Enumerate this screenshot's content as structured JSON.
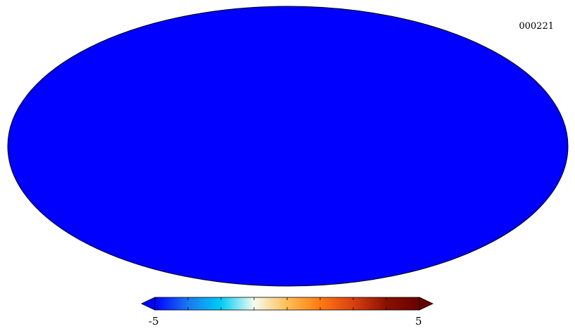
{
  "map_id": "000221",
  "chart_data": {
    "type": "heatmap",
    "projection": "mollweide",
    "title": "",
    "colorbar": {
      "min": -5,
      "max": 5,
      "min_label": "-5",
      "max_label": "5",
      "extend": "both",
      "ticks": [
        -5,
        -3.75,
        -2.5,
        -1.25,
        0,
        1.25,
        2.5,
        3.75,
        5
      ],
      "colormap": [
        "#0000ff",
        "#1a78f0",
        "#00ccf5",
        "#f5fbf0",
        "#ffbe55",
        "#ff7a10",
        "#d94010",
        "#8a1000",
        "#6a0000"
      ]
    },
    "grid": false
  }
}
